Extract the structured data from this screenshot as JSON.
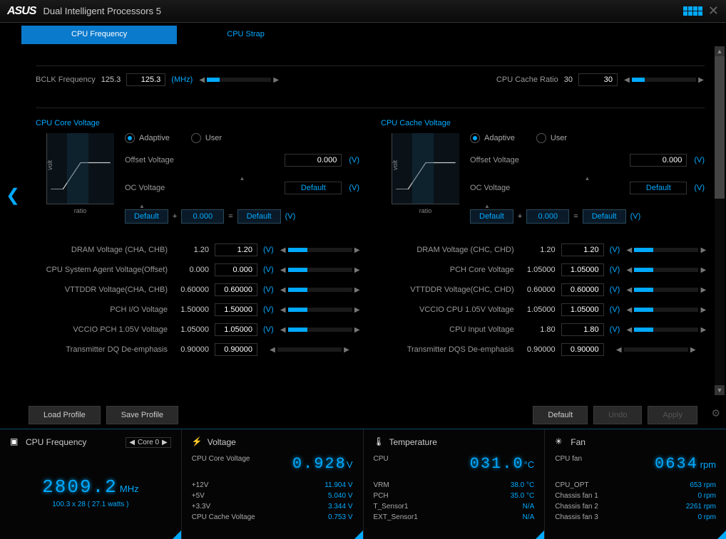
{
  "app": {
    "brand": "ASUS",
    "title": "Dual Intelligent Processors 5"
  },
  "tabs": {
    "freq": "CPU Frequency",
    "strap": "CPU Strap"
  },
  "top": {
    "bclk_label": "BCLK Frequency",
    "bclk_val": "125.3",
    "bclk_input": "125.3",
    "bclk_unit": "(MHz)",
    "cache_label": "CPU Cache Ratio",
    "cache_val": "30",
    "cache_input": "30"
  },
  "core_voltage": {
    "title": "CPU Core Voltage",
    "adaptive": "Adaptive",
    "user": "User",
    "offset_label": "Offset Voltage",
    "offset_val": "0.000",
    "oc_label": "OC Voltage",
    "oc_default": "Default",
    "formula_a": "Default",
    "formula_b": "0.000",
    "formula_c": "Default",
    "unit": "(V)",
    "y": "volt",
    "x": "ratio"
  },
  "cache_voltage": {
    "title": "CPU Cache Voltage",
    "adaptive": "Adaptive",
    "user": "User",
    "offset_label": "Offset Voltage",
    "offset_val": "0.000",
    "oc_label": "OC Voltage",
    "oc_default": "Default",
    "formula_a": "Default",
    "formula_b": "0.000",
    "formula_c": "Default",
    "unit": "(V)",
    "y": "volt",
    "x": "ratio"
  },
  "left_list": [
    {
      "label": "DRAM Voltage (CHA, CHB)",
      "val": "1.20",
      "input": "1.20",
      "unit": "(V)",
      "slider": true
    },
    {
      "label": "CPU System Agent Voltage(Offset)",
      "val": "0.000",
      "input": "0.000",
      "unit": "(V)",
      "slider": true
    },
    {
      "label": "VTTDDR Voltage(CHA, CHB)",
      "val": "0.60000",
      "input": "0.60000",
      "unit": "(V)",
      "slider": true
    },
    {
      "label": "PCH I/O Voltage",
      "val": "1.50000",
      "input": "1.50000",
      "unit": "(V)",
      "slider": true
    },
    {
      "label": "VCCIO PCH 1.05V Voltage",
      "val": "1.05000",
      "input": "1.05000",
      "unit": "(V)",
      "slider": true
    },
    {
      "label": "Transmitter DQ De-emphasis",
      "val": "0.90000",
      "input": "0.90000",
      "unit": "",
      "slider": false
    }
  ],
  "right_list": [
    {
      "label": "DRAM Voltage (CHC, CHD)",
      "val": "1.20",
      "input": "1.20",
      "unit": "(V)",
      "slider": true
    },
    {
      "label": "PCH Core Voltage",
      "val": "1.05000",
      "input": "1.05000",
      "unit": "(V)",
      "slider": true
    },
    {
      "label": "VTTDDR Voltage(CHC, CHD)",
      "val": "0.60000",
      "input": "0.60000",
      "unit": "(V)",
      "slider": true
    },
    {
      "label": "VCCIO CPU 1.05V Voltage",
      "val": "1.05000",
      "input": "1.05000",
      "unit": "(V)",
      "slider": true
    },
    {
      "label": "CPU Input Voltage",
      "val": "1.80",
      "input": "1.80",
      "unit": "(V)",
      "slider": true
    },
    {
      "label": "Transmitter DQS De-emphasis",
      "val": "0.90000",
      "input": "0.90000",
      "unit": "",
      "slider": false
    }
  ],
  "buttons": {
    "load": "Load Profile",
    "save": "Save Profile",
    "default": "Default",
    "undo": "Undo",
    "apply": "Apply"
  },
  "status": {
    "freq": {
      "title": "CPU Frequency",
      "core": "Core 0",
      "value": "2809.2",
      "unit": "MHz",
      "sub": "100.3  x 28  ( 27.1   watts )"
    },
    "voltage": {
      "title": "Voltage",
      "main_label": "CPU Core Voltage",
      "main_val": "0.928",
      "main_unit": "V",
      "rows": [
        {
          "l": "+12V",
          "v": "11.904  V"
        },
        {
          "l": "+5V",
          "v": "5.040  V"
        },
        {
          "l": "+3.3V",
          "v": "3.344  V"
        },
        {
          "l": "CPU Cache Voltage",
          "v": "0.753  V"
        }
      ]
    },
    "temp": {
      "title": "Temperature",
      "main_label": "CPU",
      "main_val": "031.0",
      "main_unit": "°C",
      "rows": [
        {
          "l": "VRM",
          "v": "38.0 °C"
        },
        {
          "l": "PCH",
          "v": "35.0 °C"
        },
        {
          "l": "T_Sensor1",
          "v": "N/A"
        },
        {
          "l": "EXT_Sensor1",
          "v": "N/A"
        }
      ]
    },
    "fan": {
      "title": "Fan",
      "main_label": "CPU fan",
      "main_val": "0634",
      "main_unit": "rpm",
      "rows": [
        {
          "l": "CPU_OPT",
          "v": "653  rpm"
        },
        {
          "l": "Chassis fan 1",
          "v": "0  rpm"
        },
        {
          "l": "Chassis fan 2",
          "v": "2261  rpm"
        },
        {
          "l": "Chassis fan 3",
          "v": "0  rpm"
        }
      ]
    }
  }
}
